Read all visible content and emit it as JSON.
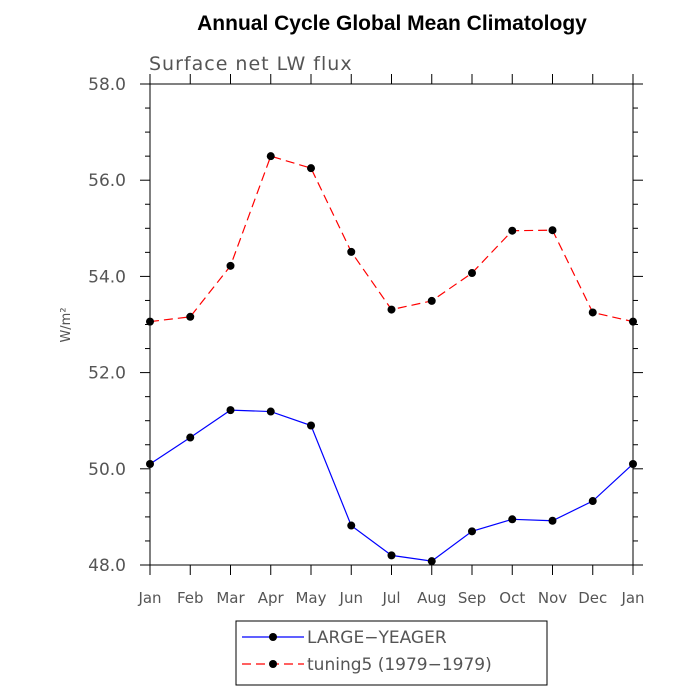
{
  "chart_data": {
    "type": "line",
    "title": "Annual Cycle Global Mean Climatology",
    "subtitle": "Surface net LW flux",
    "ylabel": "W/m²",
    "xlabel": "",
    "categories": [
      "Jan",
      "Feb",
      "Mar",
      "Apr",
      "May",
      "Jun",
      "Jul",
      "Aug",
      "Sep",
      "Oct",
      "Nov",
      "Dec",
      "Jan"
    ],
    "ylim": [
      48.0,
      58.0
    ],
    "yticks": [
      "48.0",
      "50.0",
      "52.0",
      "54.0",
      "56.0",
      "58.0"
    ],
    "grid": false,
    "legend_position": "bottom",
    "series": [
      {
        "name": "LARGE−YEAGER",
        "color": "#0000ff",
        "line_style": "solid",
        "values": [
          50.1,
          50.65,
          51.22,
          51.19,
          50.9,
          48.82,
          48.2,
          48.08,
          48.7,
          48.95,
          48.92,
          49.33,
          50.1
        ]
      },
      {
        "name": "tuning5 (1979−1979)",
        "color": "#ff0000",
        "line_style": "dashed",
        "values": [
          53.06,
          53.16,
          54.22,
          56.5,
          56.25,
          54.51,
          53.31,
          53.49,
          54.07,
          54.95,
          54.96,
          53.25,
          53.06
        ]
      }
    ]
  }
}
